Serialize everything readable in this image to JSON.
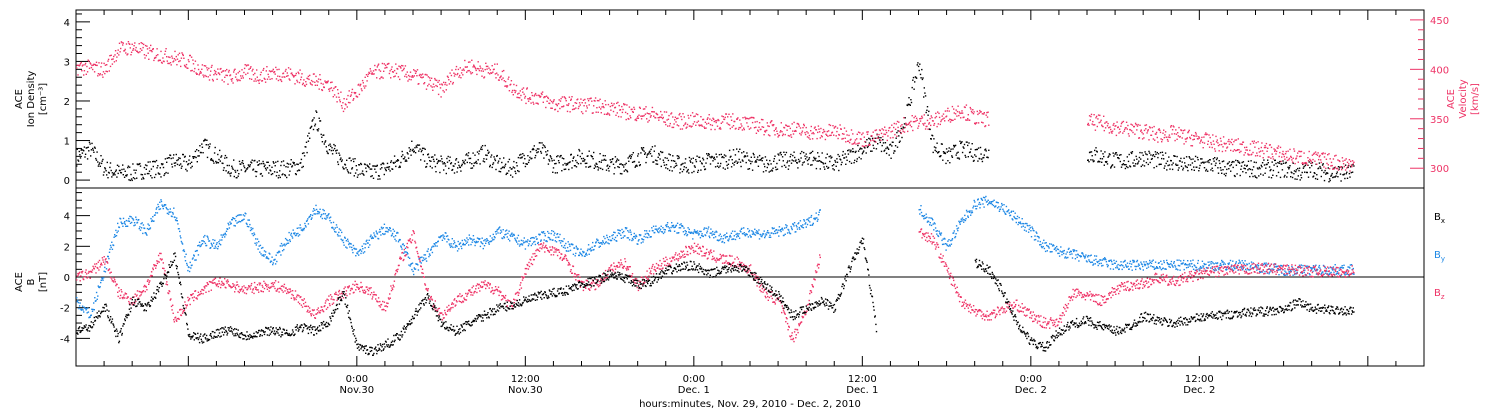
{
  "chart_data": [
    {
      "type": "scatter",
      "panel": "top",
      "xlabel": "hours:minutes, Nov. 29, 2010 - Dec. 2, 2010",
      "ylabel_left": [
        "ACE",
        "Ion Density",
        "[cm⁻³]"
      ],
      "ylabel_right": [
        "ACE",
        "Velocity",
        "[km/s]"
      ],
      "x_unit": "hours since Nov 29 00:00",
      "xlim": [
        4,
        100
      ],
      "ylim_left": [
        -0.2,
        4.3
      ],
      "ylim_right": [
        280,
        460
      ],
      "yticks_left": [
        "0",
        "1",
        "2",
        "3",
        "4"
      ],
      "yticks_right": [
        "300",
        "350",
        "400",
        "450"
      ],
      "grid": false,
      "series": [
        {
          "name": "",
          "axis": "right",
          "color": "#ee3366",
          "x": [
            4,
            5,
            6,
            7,
            8,
            9,
            10,
            11,
            12,
            13,
            14,
            15,
            16,
            17,
            18,
            19,
            20,
            21,
            22,
            23,
            24,
            25,
            26,
            27,
            28,
            29,
            30,
            31,
            32,
            33,
            34,
            35,
            36,
            37,
            38,
            39,
            40,
            41,
            42,
            43,
            44,
            45,
            46,
            47,
            48,
            49,
            50,
            51,
            52,
            53,
            54,
            55,
            56,
            57,
            58,
            59,
            60,
            61,
            62,
            63,
            64,
            65,
            66,
            67,
            68,
            69,
            70,
            71,
            72,
            73,
            74,
            75,
            76,
            77,
            78,
            79,
            80,
            81,
            82,
            83,
            84,
            85,
            86,
            87,
            88,
            89,
            90,
            91,
            92,
            93,
            94,
            95
          ],
          "values": [
            403,
            402,
            400,
            421,
            423,
            418,
            415,
            412,
            408,
            399,
            396,
            392,
            398,
            394,
            397,
            396,
            392,
            388,
            386,
            366,
            378,
            396,
            400,
            398,
            394,
            388,
            380,
            398,
            404,
            400,
            398,
            383,
            374,
            372,
            365,
            366,
            364,
            364,
            362,
            358,
            356,
            355,
            350,
            348,
            349,
            347,
            348,
            348,
            345,
            342,
            340,
            340,
            338,
            336,
            338,
            334,
            330,
            332,
            338,
            345,
            348,
            348,
            354,
            360,
            352,
            350,
            null,
            null,
            null,
            null,
            null,
            null,
            348,
            346,
            342,
            340,
            338,
            334,
            336,
            332,
            330,
            326,
            324,
            322,
            320,
            318,
            314,
            312,
            310,
            308,
            306,
            304
          ]
        },
        {
          "name": "",
          "axis": "left",
          "color": "#000000",
          "x": [
            4,
            5,
            6,
            7,
            8,
            9,
            10,
            11,
            12,
            13,
            14,
            15,
            16,
            17,
            18,
            19,
            20,
            21,
            22,
            23,
            24,
            25,
            26,
            27,
            28,
            29,
            30,
            31,
            32,
            33,
            34,
            35,
            36,
            37,
            38,
            39,
            40,
            41,
            42,
            43,
            44,
            45,
            46,
            47,
            48,
            49,
            50,
            51,
            52,
            53,
            54,
            55,
            56,
            57,
            58,
            59,
            60,
            61,
            62,
            63,
            64,
            65,
            66,
            67,
            68,
            69,
            70,
            71,
            72,
            73,
            74,
            75,
            76,
            77,
            78,
            79,
            80,
            81,
            82,
            83,
            84,
            85,
            86,
            87,
            88,
            89,
            90,
            91,
            92,
            93,
            94,
            95
          ],
          "values": [
            0.6,
            0.8,
            0.3,
            0.2,
            0.2,
            0.3,
            0.3,
            0.5,
            0.4,
            0.9,
            0.6,
            0.3,
            0.3,
            0.3,
            0.3,
            0.3,
            0.4,
            1.6,
            0.8,
            0.5,
            0.3,
            0.2,
            0.3,
            0.5,
            0.9,
            0.5,
            0.4,
            0.4,
            0.5,
            0.7,
            0.4,
            0.3,
            0.6,
            0.8,
            0.4,
            0.5,
            0.6,
            0.5,
            0.4,
            0.4,
            0.6,
            0.7,
            0.5,
            0.4,
            0.4,
            0.5,
            0.5,
            0.6,
            0.5,
            0.4,
            0.5,
            0.5,
            0.6,
            0.5,
            0.4,
            0.6,
            0.8,
            1.0,
            0.7,
            1.5,
            3.0,
            0.9,
            0.6,
            0.8,
            0.7,
            0.7,
            null,
            null,
            null,
            null,
            null,
            null,
            0.7,
            0.6,
            0.5,
            0.5,
            0.6,
            0.5,
            0.5,
            0.4,
            0.4,
            0.4,
            0.3,
            0.3,
            0.3,
            0.3,
            0.3,
            0.2,
            0.3,
            0.2,
            0.2,
            0.2
          ]
        }
      ]
    },
    {
      "type": "scatter",
      "panel": "bottom",
      "ylabel_left": [
        "ACE",
        "B",
        "[nT]"
      ],
      "x_unit": "hours since Nov 29 00:00",
      "xlim": [
        4,
        100
      ],
      "ylim": [
        -5.8,
        5.8
      ],
      "yticks": [
        "-4",
        "-2",
        "0",
        "2",
        "4"
      ],
      "xticks": [
        {
          "x": 24,
          "time": "0:00",
          "date": "Nov.30"
        },
        {
          "x": 36,
          "time": "12:00",
          "date": "Nov.30"
        },
        {
          "x": 48,
          "time": "0:00",
          "date": "Dec. 1"
        },
        {
          "x": 60,
          "time": "12:00",
          "date": "Dec. 1"
        },
        {
          "x": 72,
          "time": "0:00",
          "date": "Dec. 2"
        },
        {
          "x": 84,
          "time": "12:00",
          "date": "Dec. 2"
        }
      ],
      "zero_line": true,
      "grid": false,
      "legend": [
        {
          "name": "Bx",
          "base": "B",
          "sub": "x",
          "color": "#000000"
        },
        {
          "name": "By",
          "base": "B",
          "sub": "y",
          "color": "#1e88e5"
        },
        {
          "name": "Bz",
          "base": "B",
          "sub": "z",
          "color": "#ee3366"
        }
      ],
      "legend_position": "right",
      "series": [
        {
          "name": "Bx",
          "color": "#000000",
          "x": [
            4,
            5,
            6,
            7,
            8,
            9,
            10,
            11,
            12,
            13,
            14,
            15,
            16,
            17,
            18,
            19,
            20,
            21,
            22,
            23,
            24,
            25,
            26,
            27,
            28,
            29,
            30,
            31,
            32,
            33,
            34,
            35,
            36,
            37,
            38,
            39,
            40,
            41,
            42,
            43,
            44,
            45,
            46,
            47,
            48,
            49,
            50,
            51,
            52,
            53,
            54,
            55,
            56,
            57,
            58,
            59,
            60,
            61,
            62,
            63,
            64,
            65,
            66,
            67,
            68,
            69,
            70,
            71,
            72,
            73,
            74,
            75,
            76,
            77,
            78,
            79,
            80,
            81,
            82,
            83,
            84,
            85,
            86,
            87,
            88,
            89,
            90,
            91,
            92,
            93,
            94,
            95
          ],
          "values": [
            -3.5,
            -3.2,
            -1.8,
            -4.0,
            -1.5,
            -2.0,
            -0.5,
            1.5,
            -3.8,
            -4.0,
            -3.6,
            -3.4,
            -3.8,
            -3.6,
            -3.4,
            -3.7,
            -3.2,
            -3.5,
            -2.8,
            -1.0,
            -4.5,
            -4.8,
            -4.4,
            -3.8,
            -2.5,
            -1.2,
            -3.0,
            -3.5,
            -3.0,
            -2.5,
            -2.0,
            -1.8,
            -1.5,
            -1.2,
            -1.0,
            -0.8,
            -0.4,
            -0.2,
            0.2,
            0.0,
            -0.5,
            -0.2,
            0.4,
            0.7,
            0.8,
            0.2,
            0.5,
            0.7,
            0.3,
            -0.5,
            -1.2,
            -2.5,
            -2.0,
            -1.5,
            -2.0,
            0.5,
            2.5,
            -3.5,
            null,
            null,
            null,
            null,
            null,
            null,
            1.0,
            0.5,
            -1.0,
            -3.0,
            -4.2,
            -4.6,
            -3.5,
            -3.0,
            -2.8,
            -3.2,
            -3.5,
            -3.2,
            -2.5,
            -2.8,
            -3.0,
            -2.8,
            -2.6,
            -2.5,
            -2.4,
            -2.3,
            -2.2,
            -2.2,
            -2.1,
            -1.6,
            -2.0,
            -2.1,
            -2.1,
            -2.2
          ]
        },
        {
          "name": "By",
          "color": "#1e88e5",
          "x": [
            4,
            5,
            6,
            7,
            8,
            9,
            10,
            11,
            12,
            13,
            14,
            15,
            16,
            17,
            18,
            19,
            20,
            21,
            22,
            23,
            24,
            25,
            26,
            27,
            28,
            29,
            30,
            31,
            32,
            33,
            34,
            35,
            36,
            37,
            38,
            39,
            40,
            41,
            42,
            43,
            44,
            45,
            46,
            47,
            48,
            49,
            50,
            51,
            52,
            53,
            54,
            55,
            56,
            57,
            58,
            59,
            60,
            61,
            62,
            63,
            64,
            65,
            66,
            67,
            68,
            69,
            70,
            71,
            72,
            73,
            74,
            75,
            76,
            77,
            78,
            79,
            80,
            81,
            82,
            83,
            84,
            85,
            86,
            87,
            88,
            89,
            90,
            91,
            92,
            93,
            94,
            95
          ],
          "values": [
            -1.5,
            -2.5,
            0.5,
            3.5,
            3.8,
            3.0,
            4.8,
            4.2,
            0.5,
            2.5,
            2.0,
            3.5,
            4.0,
            2.0,
            1.0,
            2.5,
            3.2,
            4.5,
            3.8,
            2.5,
            1.5,
            2.5,
            3.2,
            2.5,
            0.5,
            1.5,
            2.8,
            2.0,
            2.5,
            2.2,
            3.0,
            2.6,
            2.2,
            2.6,
            2.8,
            2.0,
            1.5,
            2.2,
            2.5,
            3.0,
            2.5,
            3.0,
            3.3,
            3.2,
            2.8,
            3.0,
            2.6,
            2.8,
            3.0,
            2.8,
            3.0,
            3.2,
            3.5,
            4.2,
            null,
            null,
            null,
            null,
            null,
            null,
            4.5,
            3.5,
            2.0,
            3.6,
            4.8,
            5.0,
            4.5,
            3.8,
            3.0,
            2.0,
            1.7,
            1.5,
            1.2,
            1.0,
            0.8,
            0.8,
            0.8,
            0.8,
            0.8,
            0.8,
            0.8,
            0.8,
            0.8,
            0.8,
            0.7,
            0.6,
            0.5,
            0.5,
            0.5,
            0.5,
            0.5,
            0.5
          ]
        },
        {
          "name": "Bz",
          "color": "#ee3366",
          "x": [
            4,
            5,
            6,
            7,
            8,
            9,
            10,
            11,
            12,
            13,
            14,
            15,
            16,
            17,
            18,
            19,
            20,
            21,
            22,
            23,
            24,
            25,
            26,
            27,
            28,
            29,
            30,
            31,
            32,
            33,
            34,
            35,
            36,
            37,
            38,
            39,
            40,
            41,
            42,
            43,
            44,
            45,
            46,
            47,
            48,
            49,
            50,
            51,
            52,
            53,
            54,
            55,
            56,
            57,
            58,
            59,
            60,
            61,
            62,
            63,
            64,
            65,
            66,
            67,
            68,
            69,
            70,
            71,
            72,
            73,
            74,
            75,
            76,
            77,
            78,
            79,
            80,
            81,
            82,
            83,
            84,
            85,
            86,
            87,
            88,
            89,
            90,
            91,
            92,
            93,
            94,
            95
          ],
          "values": [
            0.0,
            0.3,
            1.2,
            -1.0,
            -1.5,
            -0.5,
            1.5,
            -2.8,
            -1.5,
            -0.8,
            -0.3,
            -0.5,
            -0.8,
            -0.6,
            -0.5,
            -0.8,
            -1.5,
            -2.5,
            -1.5,
            -1.0,
            -0.5,
            -1.0,
            -2.0,
            1.0,
            2.8,
            -1.0,
            -2.5,
            -1.5,
            -1.0,
            -0.5,
            -0.8,
            -2.0,
            0.5,
            2.0,
            1.8,
            1.0,
            -0.5,
            -0.5,
            0.5,
            1.0,
            -0.5,
            0.5,
            1.0,
            1.5,
            2.0,
            1.5,
            1.2,
            1.0,
            0.5,
            -1.0,
            -1.5,
            -4.0,
            -2.0,
            1.5,
            null,
            null,
            null,
            null,
            null,
            null,
            3.0,
            2.5,
            0.5,
            -1.5,
            -2.2,
            -2.5,
            -2.0,
            -1.8,
            -2.5,
            -3.0,
            -2.8,
            -1.0,
            -1.2,
            -1.5,
            -0.8,
            -0.5,
            -0.4,
            0.0,
            -0.3,
            0.0,
            0.2,
            0.4,
            0.5,
            0.5,
            0.6,
            0.6,
            0.5,
            0.5,
            0.4,
            0.4,
            0.3,
            0.5
          ]
        }
      ]
    }
  ]
}
